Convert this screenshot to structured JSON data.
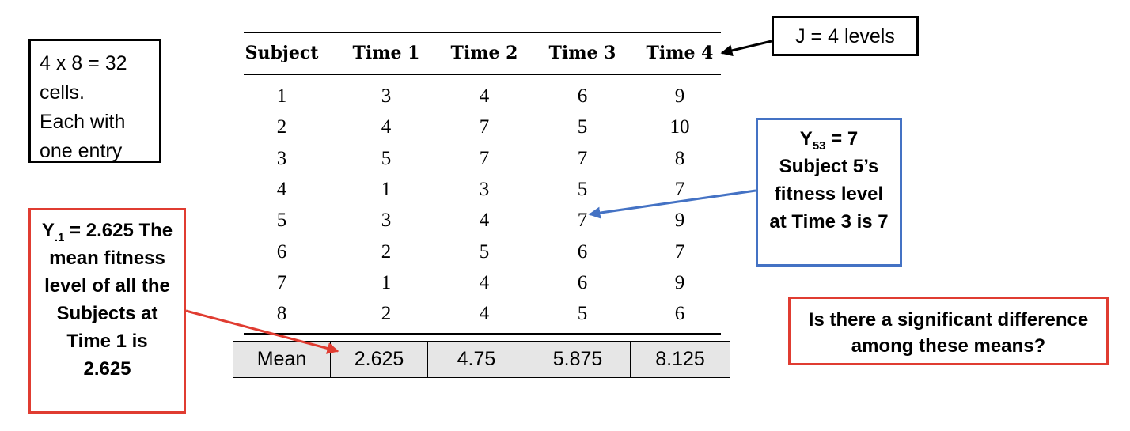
{
  "cells_note": {
    "line1": "4 x 8 = 32",
    "line2": "cells.",
    "line3": "Each with",
    "line4": "one entry"
  },
  "levels_note": {
    "text": "J = 4 levels"
  },
  "y53_note": {
    "symbol": "Y",
    "subscript": "53",
    "eq": " = 7",
    "line2": "Subject 5’s",
    "line3": "fitness level",
    "line4": "at Time 3 is 7"
  },
  "y1_note": {
    "symbol": "Y",
    "subscript": ".1",
    "eq": " = 2.625 The",
    "line2": "mean fitness",
    "line3": "level of all the",
    "line4": "Subjects at",
    "line5": "Time 1 is",
    "line6": "2.625"
  },
  "question_note": {
    "line1": "Is there a significant difference",
    "line2": "among these means?"
  },
  "table": {
    "headers": [
      "Subject",
      "Time 1",
      "Time 2",
      "Time 3",
      "Time 4"
    ],
    "rows": [
      [
        "1",
        "3",
        "4",
        "6",
        "9"
      ],
      [
        "2",
        "4",
        "7",
        "5",
        "10"
      ],
      [
        "3",
        "5",
        "7",
        "7",
        "8"
      ],
      [
        "4",
        "1",
        "3",
        "5",
        "7"
      ],
      [
        "5",
        "3",
        "4",
        "7",
        "9"
      ],
      [
        "6",
        "2",
        "5",
        "6",
        "7"
      ],
      [
        "7",
        "1",
        "4",
        "6",
        "9"
      ],
      [
        "8",
        "2",
        "4",
        "5",
        "6"
      ]
    ]
  },
  "means": {
    "label": "Mean",
    "values": [
      "2.625",
      "4.75",
      "5.875",
      "8.125"
    ]
  },
  "colors": {
    "blue_accent": "#4472C4",
    "red_accent": "#E03C31",
    "mean_fill": "#E6E6E6"
  }
}
